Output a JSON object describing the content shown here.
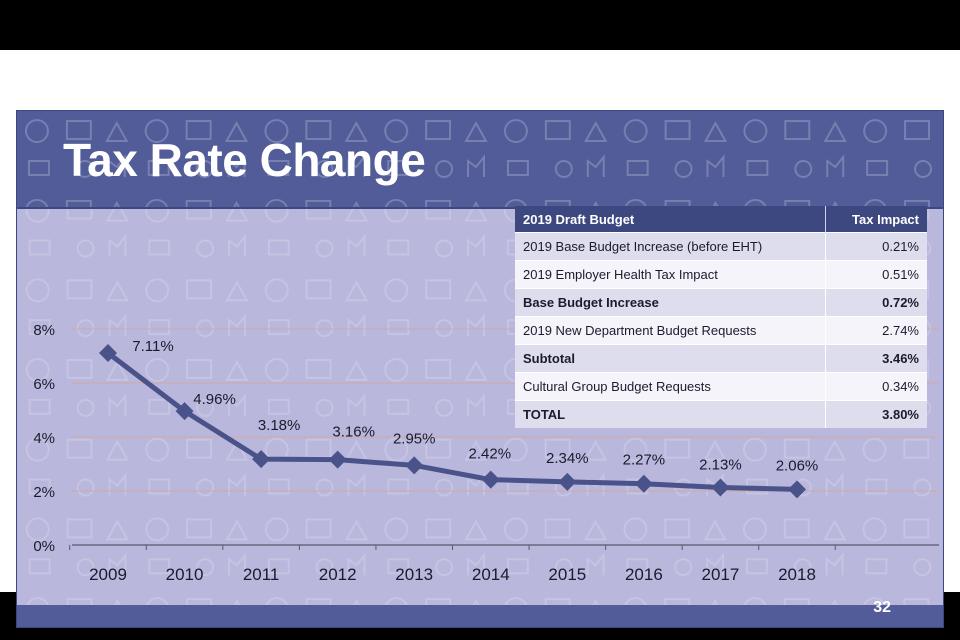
{
  "slide": {
    "title": "Tax Rate Change",
    "page_number": "32"
  },
  "table": {
    "headers": [
      "2019 Draft Budget",
      "Tax Impact"
    ],
    "rows": [
      {
        "label": "2019 Base Budget Increase (before EHT)",
        "value": "0.21%",
        "bold": false
      },
      {
        "label": "2019 Employer Health Tax Impact",
        "value": "0.51%",
        "bold": false
      },
      {
        "label": "Base Budget Increase",
        "value": "0.72%",
        "bold": true
      },
      {
        "label": "2019 New Department Budget Requests",
        "value": "2.74%",
        "bold": false
      },
      {
        "label": "Subtotal",
        "value": "3.46%",
        "bold": true
      },
      {
        "label": "Cultural Group Budget Requests",
        "value": "0.34%",
        "bold": false
      },
      {
        "label": "TOTAL",
        "value": "3.80%",
        "bold": true
      }
    ]
  },
  "chart_data": {
    "type": "line",
    "title": "",
    "xlabel": "",
    "ylabel": "",
    "x": [
      "2009",
      "2010",
      "2011",
      "2012",
      "2013",
      "2014",
      "2015",
      "2016",
      "2017",
      "2018"
    ],
    "series": [
      {
        "values": [
          7.11,
          4.96,
          3.18,
          3.16,
          2.95,
          2.42,
          2.34,
          2.27,
          2.13,
          2.06
        ],
        "labels": [
          "7.11%",
          "4.96%",
          "3.18%",
          "3.16%",
          "2.95%",
          "2.42%",
          "2.34%",
          "2.27%",
          "2.13%",
          "2.06%"
        ]
      }
    ],
    "ylim": [
      0,
      8
    ],
    "y_ticks": [
      {
        "value": 0,
        "label": "0%"
      },
      {
        "value": 2,
        "label": "2%"
      },
      {
        "value": 4,
        "label": "4%"
      },
      {
        "value": 6,
        "label": "6%"
      },
      {
        "value": 8,
        "label": "8%"
      }
    ],
    "grid": true,
    "legend": "none",
    "line_color": "#4a528a",
    "grid_color": "#d7a48c"
  }
}
